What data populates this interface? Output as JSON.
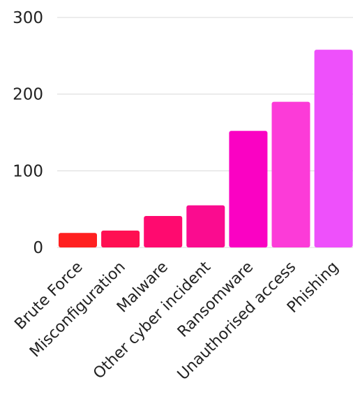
{
  "chart_data": {
    "type": "bar",
    "title": "",
    "xlabel": "",
    "ylabel": "",
    "ylim": [
      0,
      300
    ],
    "yticks": [
      0,
      100,
      200,
      300
    ],
    "grid": true,
    "legend": "none",
    "categories": [
      "Brute Force",
      "Misconfiguration",
      "Malware",
      "Other cyber incident",
      "Ransomware",
      "Unauthorised access",
      "Phishing"
    ],
    "values": [
      19,
      22,
      41,
      55,
      152,
      190,
      258
    ],
    "colors": [
      "#ff2020",
      "#ff0f52",
      "#ff0a6f",
      "#fa0c8f",
      "#fa02c3",
      "#fc3bd8",
      "#ee50fb"
    ]
  }
}
